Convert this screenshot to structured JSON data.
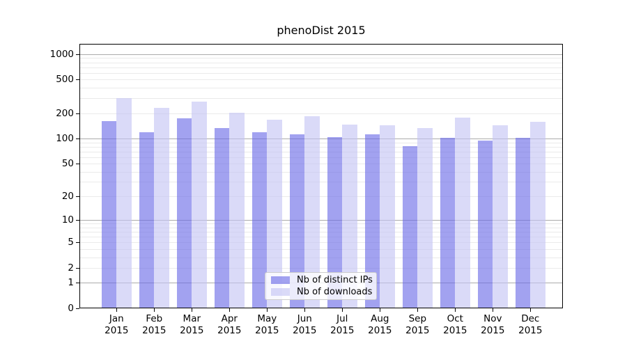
{
  "chart": {
    "title": "phenoDist 2015",
    "legend": {
      "distinct_ips_label": "Nb of distinct IPs",
      "downloads_label": "Nb of downloads"
    }
  },
  "chart_data": {
    "type": "bar",
    "title": "phenoDist 2015",
    "categories": [
      "Jan",
      "Feb",
      "Mar",
      "Apr",
      "May",
      "Jun",
      "Jul",
      "Aug",
      "Sep",
      "Oct",
      "Nov",
      "Dec"
    ],
    "category_year": "2015",
    "series": [
      {
        "name": "Nb of distinct IPs",
        "color": "rgba(105,105,231,0.62)",
        "rendered_hex": "#a2a2f0",
        "values": [
          160,
          118,
          175,
          134,
          118,
          112,
          104,
          113,
          81,
          101,
          94,
          101
        ]
      },
      {
        "name": "Nb of downloads",
        "color": "rgba(195,195,244,0.62)",
        "rendered_hex": "#dadaf8",
        "values": [
          304,
          230,
          272,
          201,
          166,
          184,
          147,
          143,
          133,
          176,
          143,
          159
        ]
      }
    ],
    "xlabel": "",
    "ylabel": "",
    "yscale": "log1p",
    "yticks": [
      0,
      1,
      2,
      5,
      10,
      20,
      50,
      100,
      200,
      500,
      1000
    ],
    "ylim": [
      0,
      1320
    ],
    "grid": "horizontal, major gray at powers of 10, minor light gray at 2-9 multiples",
    "legend_position": "lower center inside plot",
    "colors": {
      "major_grid": "#ababab",
      "minor_grid": "#eaeaea",
      "spine": "#000000",
      "background": "#ffffff"
    }
  }
}
